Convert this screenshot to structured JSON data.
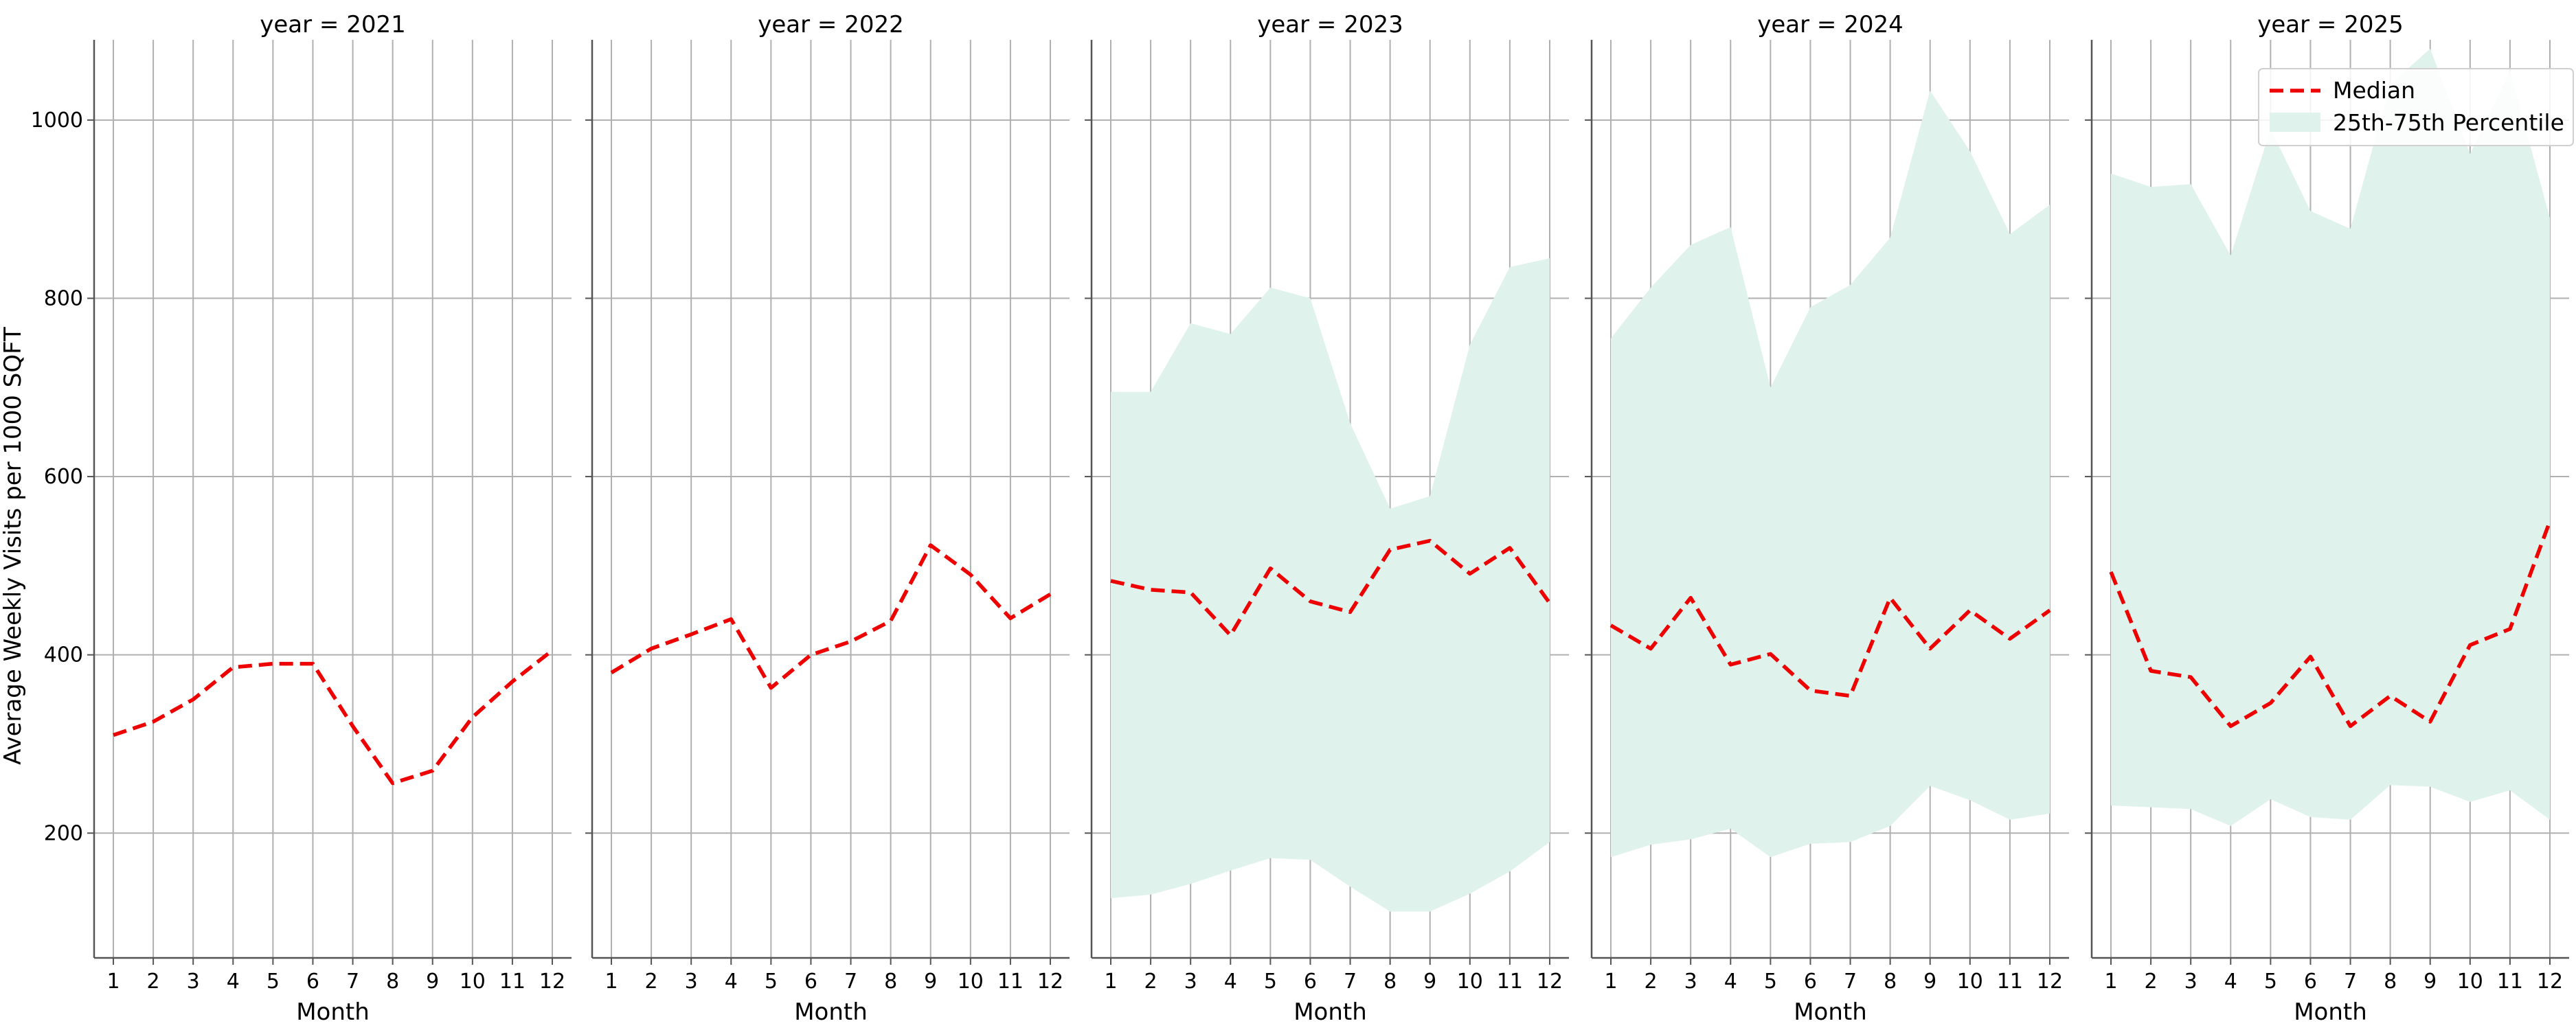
{
  "chart_data": {
    "type": "line",
    "ylabel": "Average Weekly Visits per 1000 SQFT",
    "xlabel": "Month",
    "x": [
      1,
      2,
      3,
      4,
      5,
      6,
      7,
      8,
      9,
      10,
      11,
      12
    ],
    "xticks": [
      "1",
      "2",
      "3",
      "4",
      "5",
      "6",
      "7",
      "8",
      "9",
      "10",
      "11",
      "12"
    ],
    "ylim": [
      60,
      1090
    ],
    "yticks": [
      200,
      400,
      600,
      800,
      1000
    ],
    "grid": true,
    "legend_position": "top-right",
    "legend": {
      "median": "Median",
      "band": "25th-75th Percentile"
    },
    "colors": {
      "median": "#ee0000",
      "band": "#dff2ec",
      "grid": "#b0b0b0",
      "axis": "#555555"
    },
    "panels": [
      {
        "title": "year = 2021",
        "median": [
          310,
          325,
          350,
          386,
          390,
          390,
          320,
          256,
          270,
          330,
          370,
          405
        ],
        "p25": null,
        "p75": null
      },
      {
        "title": "year = 2022",
        "median": [
          380,
          407,
          423,
          440,
          363,
          400,
          415,
          438,
          523,
          490,
          441,
          468
        ],
        "p25": null,
        "p75": null
      },
      {
        "title": "year = 2023",
        "median": [
          483,
          473,
          470,
          422,
          497,
          460,
          448,
          518,
          528,
          491,
          520,
          458
        ],
        "p25": [
          127,
          131,
          143,
          158,
          172,
          170,
          140,
          112,
          112,
          132,
          157,
          190
        ],
        "p75": [
          695,
          695,
          772,
          760,
          812,
          800,
          660,
          564,
          578,
          748,
          835,
          845
        ]
      },
      {
        "title": "year = 2024",
        "median": [
          433,
          407,
          464,
          389,
          401,
          360,
          354,
          464,
          407,
          450,
          418,
          450
        ],
        "p25": [
          173,
          187,
          193,
          205,
          173,
          188,
          190,
          208,
          253,
          237,
          215,
          222
        ],
        "p75": [
          755,
          812,
          860,
          880,
          700,
          790,
          815,
          868,
          1033,
          965,
          872,
          905
        ]
      },
      {
        "title": "year = 2025",
        "median": [
          493,
          382,
          375,
          320,
          346,
          398,
          320,
          354,
          325,
          411,
          429,
          550
        ],
        "p25": [
          231,
          229,
          227,
          208,
          238,
          218,
          215,
          254,
          252,
          235,
          248,
          215
        ],
        "p75": [
          940,
          925,
          928,
          848,
          990,
          898,
          878,
          1040,
          1080,
          962,
          1055,
          890
        ]
      }
    ]
  }
}
